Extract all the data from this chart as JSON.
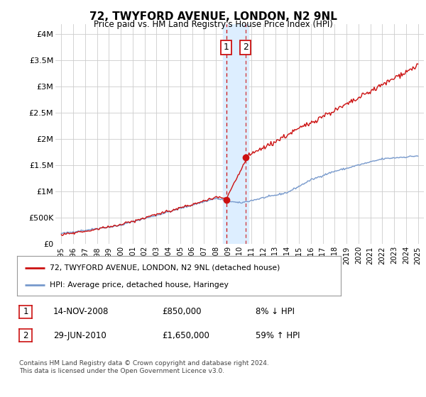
{
  "title": "72, TWYFORD AVENUE, LONDON, N2 9NL",
  "subtitle": "Price paid vs. HM Land Registry's House Price Index (HPI)",
  "ylabel_ticks": [
    "£0",
    "£500K",
    "£1M",
    "£1.5M",
    "£2M",
    "£2.5M",
    "£3M",
    "£3.5M",
    "£4M"
  ],
  "ytick_values": [
    0,
    500000,
    1000000,
    1500000,
    2000000,
    2500000,
    3000000,
    3500000,
    4000000
  ],
  "ylim": [
    0,
    4200000
  ],
  "xlim_start": 1994.5,
  "xlim_end": 2025.5,
  "transaction1_date": 2008.87,
  "transaction1_price": 850000,
  "transaction2_date": 2010.49,
  "transaction2_price": 1650000,
  "highlight_x1": 2008.62,
  "highlight_x2": 2010.75,
  "legend_line1": "72, TWYFORD AVENUE, LONDON, N2 9NL (detached house)",
  "legend_line2": "HPI: Average price, detached house, Haringey",
  "table_row1_date": "14-NOV-2008",
  "table_row1_price": "£850,000",
  "table_row1_hpi": "8% ↓ HPI",
  "table_row2_date": "29-JUN-2010",
  "table_row2_price": "£1,650,000",
  "table_row2_hpi": "59% ↑ HPI",
  "footnote": "Contains HM Land Registry data © Crown copyright and database right 2024.\nThis data is licensed under the Open Government Licence v3.0.",
  "hpi_color": "#7799cc",
  "price_color": "#cc1111",
  "highlight_color": "#ddeeff",
  "background_color": "#ffffff",
  "grid_color": "#cccccc"
}
